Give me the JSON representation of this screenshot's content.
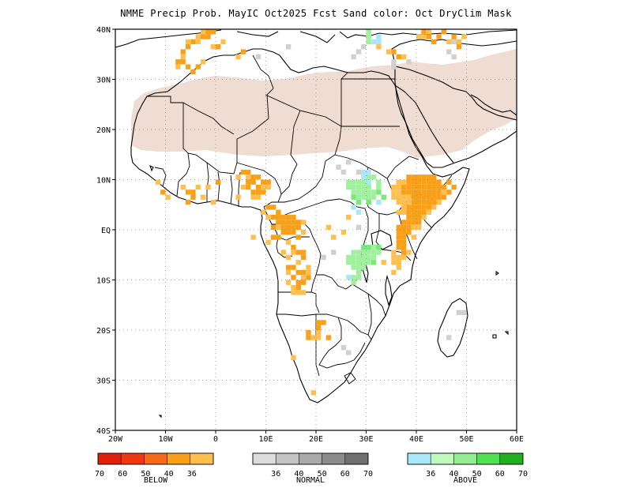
{
  "title": "NMME Precip Prob. MayIC  Oct2025 Fcst  Sand color: Oct DryClim Mask",
  "map": {
    "lon_range": [
      -20,
      60
    ],
    "lat_range": [
      -40,
      40
    ],
    "lat_labels": [
      "40N",
      "30N",
      "20N",
      "10N",
      "EQ",
      "10S",
      "20S",
      "30S",
      "40S"
    ],
    "lon_labels": [
      "20W",
      "10W",
      "0",
      "10E",
      "20E",
      "30E",
      "40E",
      "50E",
      "60E"
    ],
    "grid": "dotted",
    "colors": {
      "dry_mask": "#efdcd2",
      "below_36": "#fdc050",
      "below_40": "#f8a018",
      "normal_36": "#d0d0d0",
      "above_36": "#a8e8f8",
      "above_40": "#a0f0a0",
      "above_50": "#78e878",
      "coast": "#000000"
    }
  },
  "legend": {
    "below": {
      "title": "BELOW",
      "values": [
        "70",
        "60",
        "50",
        "40",
        "36"
      ],
      "colors": [
        "#e0200a",
        "#f03810",
        "#f86818",
        "#f8a018",
        "#fdc050"
      ]
    },
    "normal": {
      "title": "NORMAL",
      "values": [
        "36",
        "40",
        "50",
        "60",
        "70"
      ],
      "colors": [
        "#dcdcdc",
        "#c4c4c4",
        "#aaaaaa",
        "#8c8c8c",
        "#707070"
      ]
    },
    "above": {
      "title": "ABOVE",
      "values": [
        "36",
        "40",
        "50",
        "60",
        "70"
      ],
      "colors": [
        "#a8e8f8",
        "#c0f8c0",
        "#90ee90",
        "#50e050",
        "#20b020"
      ]
    }
  }
}
